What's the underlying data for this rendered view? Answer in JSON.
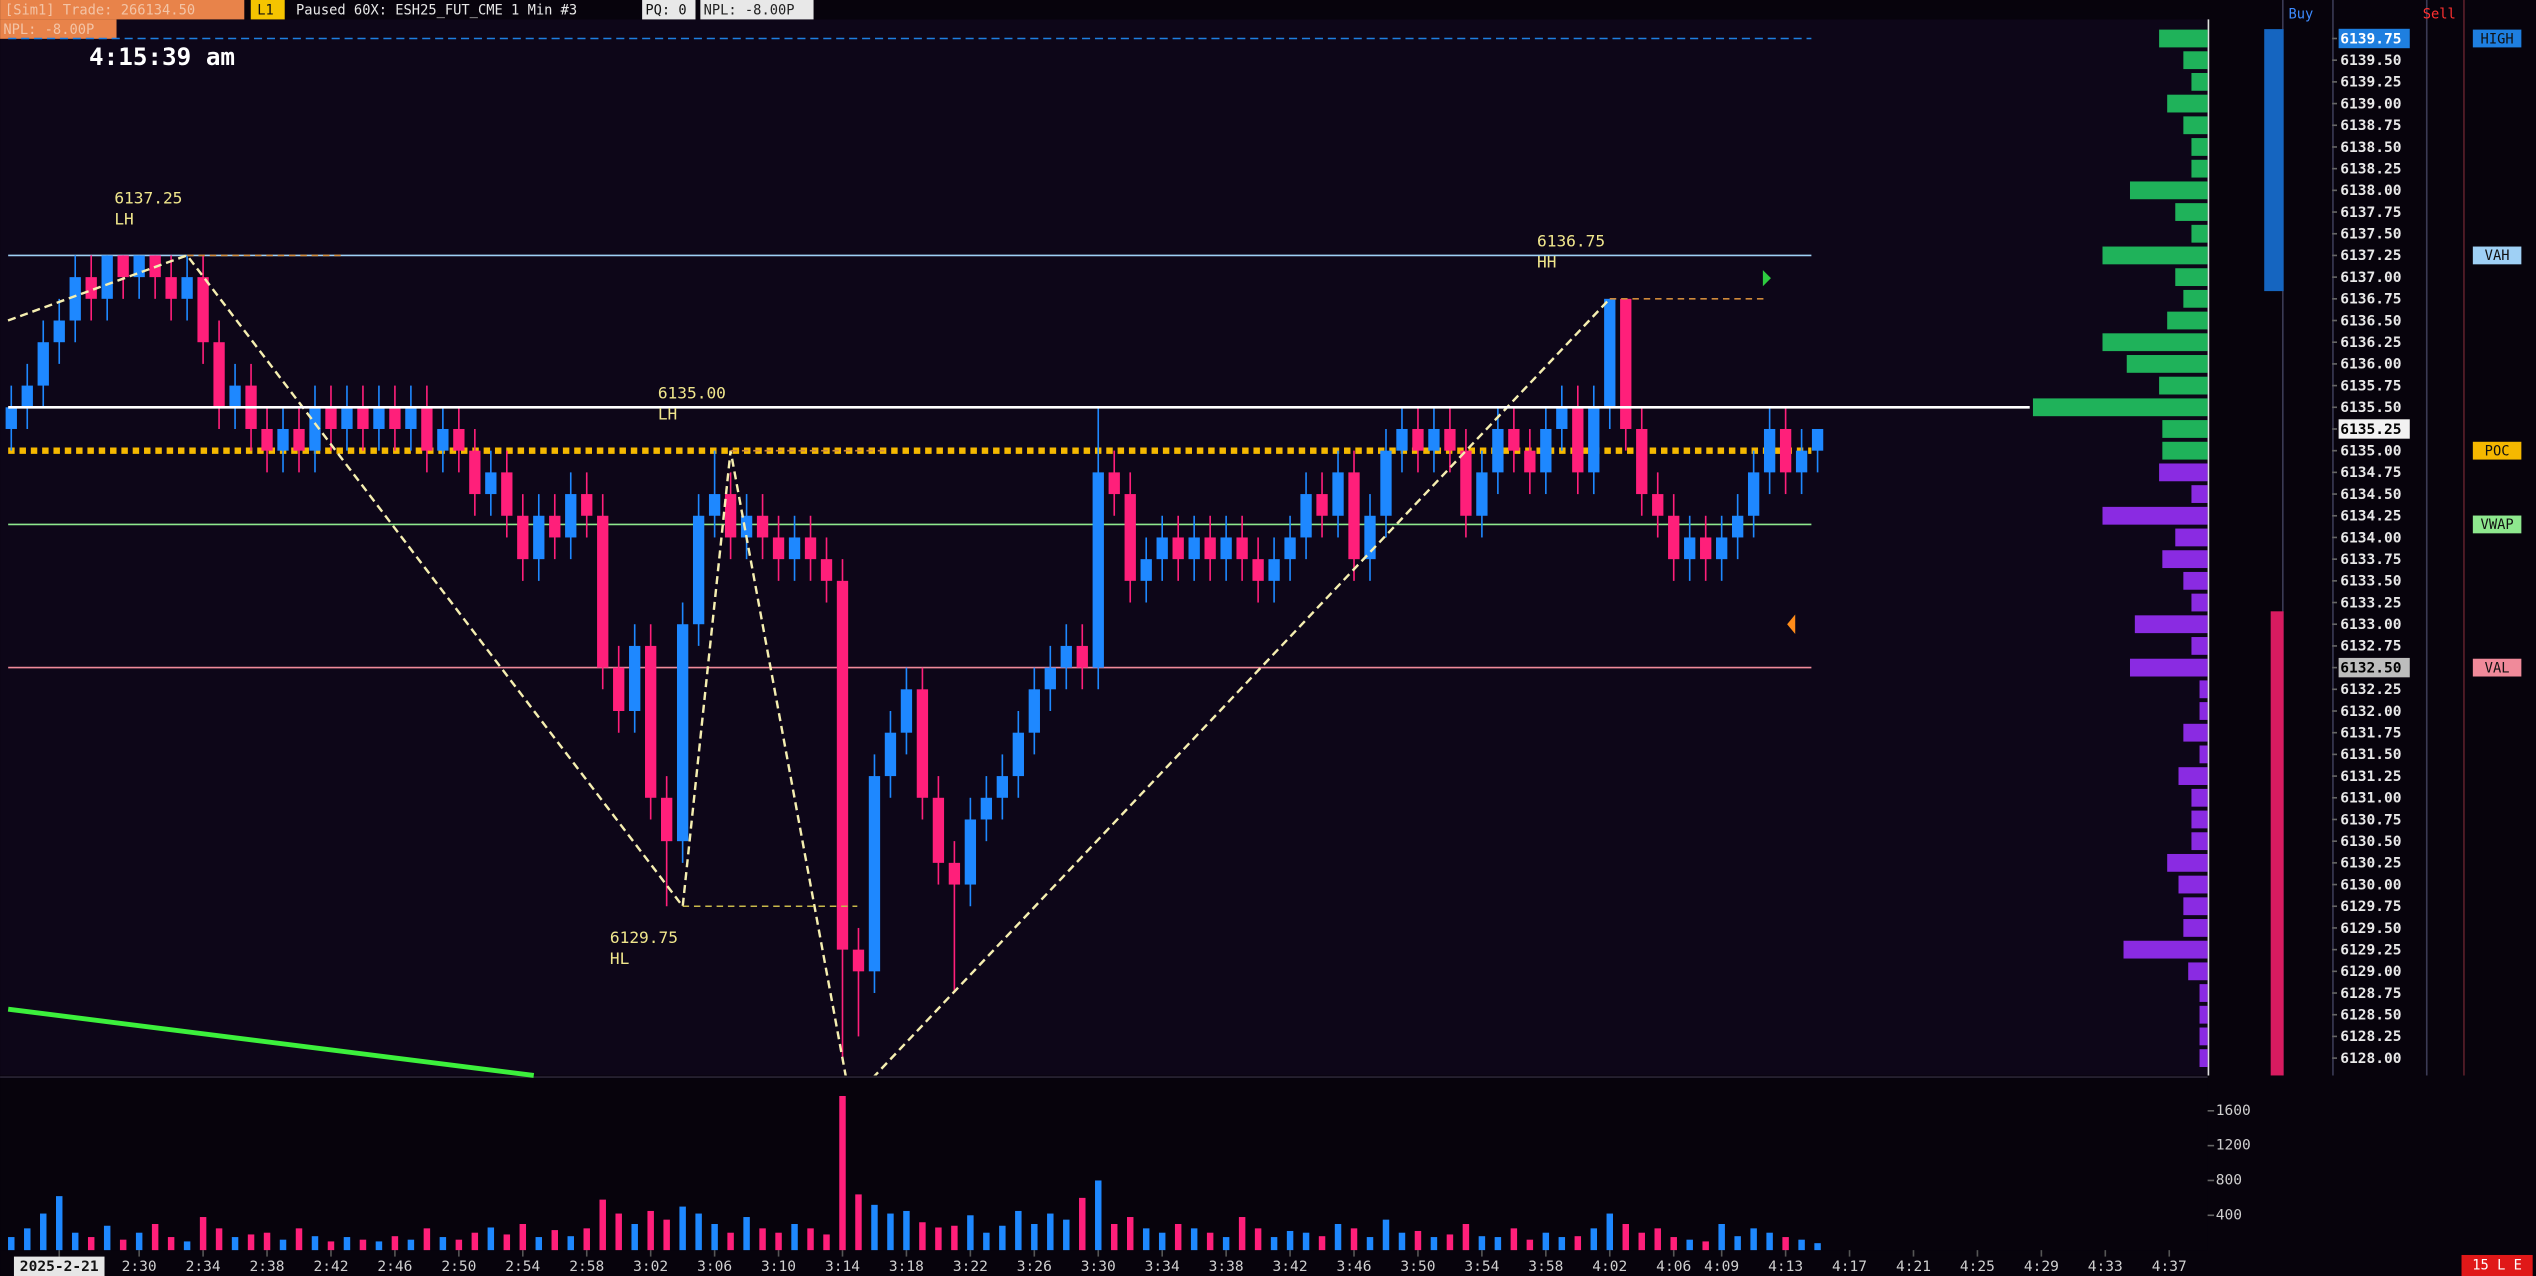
{
  "header": {
    "account": "[Sim1]  Trade: 266134.50",
    "feed": "L1",
    "status": "Paused 60X: ESH25_FUT_CME  1 Min  #3",
    "pq": "PQ: 0",
    "npl": "NPL: -8.00P",
    "npl2": "NPL: -8.00P",
    "clock": "4:15:39 am",
    "buy": "Buy",
    "sell": "Sell",
    "corner": "15 L E"
  },
  "chart_data": {
    "type": "candlestick",
    "up_color": "#1e88ff",
    "down_color": "#ff1f7a",
    "xlim": [
      -0.7,
      137.4
    ],
    "xticks": [
      {
        "value": 3,
        "label": "2025-2-21"
      },
      {
        "value": 8,
        "label": "2:30"
      },
      {
        "value": 12,
        "label": "2:34"
      },
      {
        "value": 16,
        "label": "2:38"
      },
      {
        "value": 20,
        "label": "2:42"
      },
      {
        "value": 24,
        "label": "2:46"
      },
      {
        "value": 28,
        "label": "2:50"
      },
      {
        "value": 32,
        "label": "2:54"
      },
      {
        "value": 36,
        "label": "2:58"
      },
      {
        "value": 40,
        "label": "3:02"
      },
      {
        "value": 44,
        "label": "3:06"
      },
      {
        "value": 48,
        "label": "3:10"
      },
      {
        "value": 52,
        "label": "3:14"
      },
      {
        "value": 56,
        "label": "3:18"
      },
      {
        "value": 60,
        "label": "3:22"
      },
      {
        "value": 64,
        "label": "3:26"
      },
      {
        "value": 68,
        "label": "3:30"
      },
      {
        "value": 72,
        "label": "3:34"
      },
      {
        "value": 76,
        "label": "3:38"
      },
      {
        "value": 80,
        "label": "3:42"
      },
      {
        "value": 84,
        "label": "3:46"
      },
      {
        "value": 88,
        "label": "3:50"
      },
      {
        "value": 92,
        "label": "3:54"
      },
      {
        "value": 96,
        "label": "3:58"
      },
      {
        "value": 100,
        "label": "4:02"
      },
      {
        "value": 104,
        "label": "4:06"
      },
      {
        "value": 107,
        "label": "4:09"
      },
      {
        "value": 111,
        "label": "4:13"
      },
      {
        "value": 115,
        "label": "4:17"
      },
      {
        "value": 119,
        "label": "4:21"
      },
      {
        "value": 123,
        "label": "4:25"
      },
      {
        "value": 127,
        "label": "4:29"
      },
      {
        "value": 131,
        "label": "4:33"
      },
      {
        "value": 135,
        "label": "4:37"
      }
    ],
    "ylim": [
      6127.8,
      6139.97
    ],
    "yticks": [
      {
        "value": 6128,
        "label": "6128.00"
      },
      {
        "value": 6128.25,
        "label": "6128.25"
      },
      {
        "value": 6128.5,
        "label": "6128.50"
      },
      {
        "value": 6128.75,
        "label": "6128.75"
      },
      {
        "value": 6129,
        "label": "6129.00"
      },
      {
        "value": 6129.25,
        "label": "6129.25"
      },
      {
        "value": 6129.5,
        "label": "6129.50"
      },
      {
        "value": 6129.75,
        "label": "6129.75"
      },
      {
        "value": 6130,
        "label": "6130.00"
      },
      {
        "value": 6130.25,
        "label": "6130.25"
      },
      {
        "value": 6130.5,
        "label": "6130.50"
      },
      {
        "value": 6130.75,
        "label": "6130.75"
      },
      {
        "value": 6131,
        "label": "6131.00"
      },
      {
        "value": 6131.25,
        "label": "6131.25"
      },
      {
        "value": 6131.5,
        "label": "6131.50"
      },
      {
        "value": 6131.75,
        "label": "6131.75"
      },
      {
        "value": 6132,
        "label": "6132.00"
      },
      {
        "value": 6132.25,
        "label": "6132.25"
      },
      {
        "value": 6132.5,
        "label": "6132.50"
      },
      {
        "value": 6132.75,
        "label": "6132.75"
      },
      {
        "value": 6133,
        "label": "6133.00"
      },
      {
        "value": 6133.25,
        "label": "6133.25"
      },
      {
        "value": 6133.5,
        "label": "6133.50"
      },
      {
        "value": 6133.75,
        "label": "6133.75"
      },
      {
        "value": 6134,
        "label": "6134.00"
      },
      {
        "value": 6134.25,
        "label": "6134.25"
      },
      {
        "value": 6134.5,
        "label": "6134.50"
      },
      {
        "value": 6134.75,
        "label": "6134.75"
      },
      {
        "value": 6135,
        "label": "6135.00"
      },
      {
        "value": 6135.25,
        "label": "6135.25"
      },
      {
        "value": 6135.5,
        "label": "6135.50"
      },
      {
        "value": 6135.75,
        "label": "6135.75"
      },
      {
        "value": 6136,
        "label": "6136.00"
      },
      {
        "value": 6136.25,
        "label": "6136.25"
      },
      {
        "value": 6136.5,
        "label": "6136.50"
      },
      {
        "value": 6136.75,
        "label": "6136.75"
      },
      {
        "value": 6137,
        "label": "6137.00"
      },
      {
        "value": 6137.25,
        "label": "6137.25"
      },
      {
        "value": 6137.5,
        "label": "6137.50"
      },
      {
        "value": 6137.75,
        "label": "6137.75"
      },
      {
        "value": 6138,
        "label": "6138.00"
      },
      {
        "value": 6138.25,
        "label": "6138.25"
      },
      {
        "value": 6138.5,
        "label": "6138.50"
      },
      {
        "value": 6138.75,
        "label": "6138.75"
      },
      {
        "value": 6139,
        "label": "6139.00"
      },
      {
        "value": 6139.25,
        "label": "6139.25"
      },
      {
        "value": 6139.5,
        "label": "6139.50"
      },
      {
        "value": 6139.75,
        "label": "6139.75"
      }
    ],
    "open": [
      6135.25,
      6135.5,
      6135.75,
      6136.25,
      6136.5,
      6137,
      6136.75,
      6137.25,
      6137,
      6137.25,
      6137,
      6136.75,
      6137,
      6136.25,
      6135.5,
      6135.75,
      6135.25,
      6135,
      6135.25,
      6135,
      6135.5,
      6135.25,
      6135.5,
      6135.25,
      6135.5,
      6135.25,
      6135.5,
      6135,
      6135.25,
      6135,
      6134.5,
      6134.75,
      6134.25,
      6133.75,
      6134.25,
      6134,
      6134.5,
      6134.25,
      6132.5,
      6132,
      6132.75,
      6131,
      6130.5,
      6133,
      6134.25,
      6134.5,
      6134,
      6134.25,
      6134,
      6133.75,
      6134,
      6133.75,
      6133.5,
      6129.25,
      6129,
      6131.25,
      6131.75,
      6132.25,
      6131,
      6130.25,
      6130,
      6130.75,
      6131,
      6131.25,
      6131.75,
      6132.25,
      6132.5,
      6132.75,
      6132.5,
      6134.75,
      6134.5,
      6133.5,
      6133.75,
      6134,
      6133.75,
      6134,
      6133.75,
      6134,
      6133.75,
      6133.5,
      6133.75,
      6134,
      6134.5,
      6134.25,
      6134.75,
      6133.75,
      6134.25,
      6135,
      6135.25,
      6135,
      6135.25,
      6135,
      6134.25,
      6134.75,
      6135.25,
      6135,
      6134.75,
      6135.25,
      6135.5,
      6134.75,
      6135.5,
      6136.75,
      6135.25,
      6134.5,
      6134.25,
      6133.75,
      6134,
      6133.75,
      6134,
      6134.25,
      6134.75,
      6135.25,
      6134.75,
      6135
    ],
    "high": [
      6135.75,
      6136,
      6136.5,
      6136.75,
      6137.25,
      6137.25,
      6137.25,
      6137.25,
      6137.25,
      6137.25,
      6137.25,
      6137.25,
      6137.25,
      6136.5,
      6136,
      6136,
      6135.5,
      6135.5,
      6135.5,
      6135.75,
      6135.75,
      6135.75,
      6135.75,
      6135.75,
      6135.75,
      6135.75,
      6135.75,
      6135.5,
      6135.5,
      6135.25,
      6135,
      6135,
      6134.5,
      6134.5,
      6134.5,
      6134.75,
      6134.75,
      6134.5,
      6132.75,
      6133,
      6133,
      6131.25,
      6133.25,
      6134.5,
      6135,
      6134.75,
      6134.5,
      6134.5,
      6134.25,
      6134.25,
      6134.25,
      6134,
      6133.75,
      6129.5,
      6131.5,
      6132,
      6132.5,
      6132.5,
      6131.25,
      6130.5,
      6131,
      6131.25,
      6131.5,
      6132,
      6132.5,
      6132.75,
      6133,
      6133,
      6135.5,
      6135,
      6134.75,
      6134,
      6134.25,
      6134.25,
      6134.25,
      6134.25,
      6134.25,
      6134.25,
      6134,
      6134,
      6134.25,
      6134.75,
      6134.75,
      6135,
      6135,
      6134.5,
      6135.25,
      6135.5,
      6135.5,
      6135.5,
      6135.5,
      6135.25,
      6135,
      6135.5,
      6135.5,
      6135.25,
      6135.5,
      6135.75,
      6135.75,
      6135.75,
      6136.75,
      6136.75,
      6135.5,
      6134.75,
      6134.5,
      6134.25,
      6134.25,
      6134.25,
      6134.5,
      6135,
      6135.5,
      6135.5,
      6135.25,
      6135.25
    ],
    "low": [
      6135,
      6135.25,
      6135.5,
      6136,
      6136.25,
      6136.5,
      6136.5,
      6136.75,
      6136.75,
      6136.75,
      6136.5,
      6136.5,
      6136,
      6135.25,
      6135.25,
      6135,
      6134.75,
      6134.75,
      6134.75,
      6134.75,
      6135,
      6135,
      6135,
      6135,
      6135,
      6135,
      6134.75,
      6134.75,
      6134.75,
      6134.25,
      6134.25,
      6134,
      6133.5,
      6133.5,
      6133.75,
      6133.75,
      6134,
      6132.25,
      6131.75,
      6131.75,
      6130.75,
      6129.75,
      6130.25,
      6132.75,
      6134,
      6133.75,
      6133.75,
      6133.75,
      6133.5,
      6133.5,
      6133.5,
      6133.25,
      6128,
      6128.25,
      6128.75,
      6131,
      6131.5,
      6130.75,
      6130,
      6128.75,
      6129.75,
      6130.5,
      6130.75,
      6131,
      6131.5,
      6132,
      6132.25,
      6132.25,
      6132.25,
      6134.25,
      6133.25,
      6133.25,
      6133.5,
      6133.5,
      6133.5,
      6133.5,
      6133.5,
      6133.5,
      6133.25,
      6133.25,
      6133.5,
      6133.75,
      6134,
      6134,
      6133.5,
      6133.5,
      6134,
      6134.75,
      6134.75,
      6134.75,
      6134.75,
      6134,
      6134,
      6134.5,
      6134.75,
      6134.5,
      6134.5,
      6135,
      6134.5,
      6134.5,
      6135.25,
      6135,
      6134.25,
      6134,
      6133.5,
      6133.5,
      6133.5,
      6133.5,
      6133.75,
      6134,
      6134.5,
      6134.5,
      6134.5,
      6134.75
    ],
    "close": [
      6135.5,
      6135.75,
      6136.25,
      6136.5,
      6137,
      6136.75,
      6137.25,
      6137,
      6137.25,
      6137,
      6136.75,
      6137,
      6136.25,
      6135.5,
      6135.75,
      6135.25,
      6135,
      6135.25,
      6135,
      6135.5,
      6135.25,
      6135.5,
      6135.25,
      6135.5,
      6135.25,
      6135.5,
      6135,
      6135.25,
      6135,
      6134.5,
      6134.75,
      6134.25,
      6133.75,
      6134.25,
      6134,
      6134.5,
      6134.25,
      6132.5,
      6132,
      6132.75,
      6131,
      6130.5,
      6133,
      6134.25,
      6134.5,
      6134,
      6134.25,
      6134,
      6133.75,
      6134,
      6133.75,
      6133.5,
      6129.25,
      6129,
      6131.25,
      6131.75,
      6132.25,
      6131,
      6130.25,
      6130,
      6130.75,
      6131,
      6131.25,
      6131.75,
      6132.25,
      6132.5,
      6132.75,
      6132.5,
      6134.75,
      6134.5,
      6133.5,
      6133.75,
      6134,
      6133.75,
      6134,
      6133.75,
      6134,
      6133.75,
      6133.5,
      6133.75,
      6134,
      6134.5,
      6134.25,
      6134.75,
      6133.75,
      6134.25,
      6135,
      6135.25,
      6135,
      6135.25,
      6135,
      6134.25,
      6134.75,
      6135.25,
      6135,
      6134.75,
      6135.25,
      6135.5,
      6134.75,
      6135.5,
      6136.75,
      6135.25,
      6134.5,
      6134.25,
      6133.75,
      6134,
      6133.75,
      6134,
      6134.25,
      6134.75,
      6135.25,
      6134.75,
      6135,
      6135.25
    ],
    "volume": [
      150,
      250,
      420,
      620,
      200,
      150,
      280,
      120,
      200,
      300,
      150,
      100,
      380,
      250,
      150,
      180,
      200,
      120,
      250,
      160,
      100,
      150,
      120,
      100,
      160,
      120,
      250,
      150,
      120,
      200,
      260,
      180,
      300,
      150,
      230,
      160,
      250,
      580,
      420,
      300,
      450,
      350,
      500,
      420,
      300,
      200,
      380,
      250,
      200,
      300,
      250,
      180,
      1770,
      640,
      520,
      420,
      450,
      320,
      260,
      280,
      400,
      200,
      280,
      450,
      300,
      420,
      350,
      600,
      800,
      300,
      380,
      250,
      200,
      300,
      250,
      200,
      150,
      380,
      250,
      150,
      220,
      200,
      160,
      300,
      250,
      150,
      350,
      200,
      220,
      150,
      180,
      300,
      160,
      150,
      250,
      120,
      200,
      150,
      160,
      250,
      420,
      300,
      200,
      250,
      150,
      120,
      100,
      300,
      160,
      250,
      200,
      150,
      120,
      80
    ],
    "vlim": [
      0,
      1950
    ],
    "vticks": [
      400,
      800,
      1200,
      1600
    ],
    "profile": [
      5,
      5,
      5,
      5,
      12,
      52,
      15,
      15,
      18,
      25,
      10,
      10,
      10,
      18,
      5,
      15,
      5,
      5,
      48,
      10,
      45,
      10,
      15,
      28,
      20,
      65,
      10,
      30,
      28,
      28,
      108,
      30,
      50,
      65,
      25,
      15,
      20,
      65,
      10,
      20,
      48,
      10,
      10,
      15,
      25,
      10,
      15,
      30
    ],
    "profile_colors": {
      "above": "#1fb25a",
      "below": "#8a2be2"
    },
    "levels": [
      {
        "label": "HIGH",
        "value": 6139.75,
        "color": "#1e7fe0",
        "line": "dashed"
      },
      {
        "label": "VAH",
        "value": 6137.25,
        "color": "#9fd0f5",
        "line": "solid"
      },
      {
        "label": "POC",
        "value": 6135,
        "color": "#f5b800",
        "line": "dotted"
      },
      {
        "label": "VWAP",
        "value": 6134.15,
        "color": "#8ee88e",
        "line": "solid"
      },
      {
        "label": "VAL",
        "value": 6132.5,
        "color": "#f08a9a",
        "line": "solid"
      }
    ],
    "hlines": [
      {
        "value": 6135.5,
        "color": "#ffffff"
      }
    ],
    "zigzag": {
      "x": [
        -0.2,
        11,
        42,
        45,
        52.5,
        100
      ],
      "y": [
        6136.5,
        6137.25,
        6129.75,
        6135,
        6127.5,
        6136.75
      ]
    },
    "swings": [
      {
        "x": 11,
        "price": 6137.25,
        "label": "6137.25",
        "tag": "LH"
      },
      {
        "x": 45,
        "price": 6135,
        "label": "6135.00",
        "tag": "LH"
      },
      {
        "x": 42,
        "price": 6129.75,
        "label": "6129.75",
        "tag": "HL"
      },
      {
        "x": 100,
        "price": 6136.75,
        "label": "6136.75",
        "tag": "HH"
      }
    ]
  }
}
